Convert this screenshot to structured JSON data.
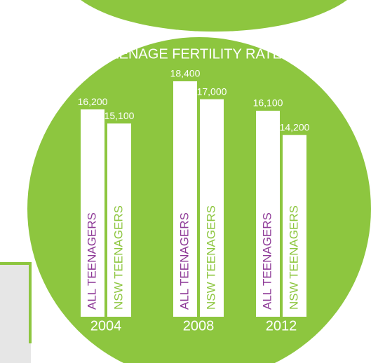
{
  "chart_data": {
    "type": "bar",
    "title": "TEENAGE FERTILITY RATE",
    "categories": [
      "2004",
      "2008",
      "2012"
    ],
    "bar_color": "#ffffff",
    "series": [
      {
        "name": "ALL TEENAGERS",
        "color": "#8e3a97",
        "values": [
          16200,
          18400,
          16100
        ],
        "value_labels": [
          "16,200",
          "18,400",
          "16,100"
        ]
      },
      {
        "name": "NSW TEENAGERS",
        "color": "#8dc63f",
        "values": [
          15100,
          17000,
          14200
        ],
        "value_labels": [
          "15,100",
          "17,000",
          "14,200"
        ]
      }
    ]
  }
}
